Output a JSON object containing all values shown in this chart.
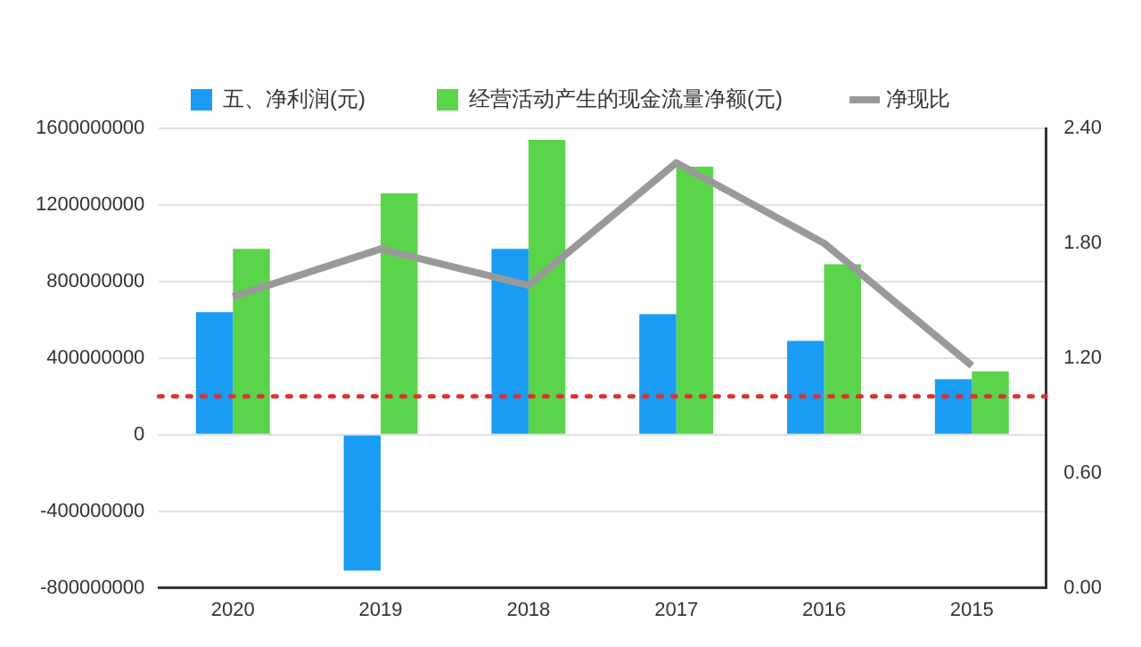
{
  "chart_data": {
    "type": "bar",
    "categories": [
      "2020",
      "2019",
      "2018",
      "2017",
      "2016",
      "2015"
    ],
    "series": [
      {
        "name": "五、净利润(元)",
        "color": "#1a9cf5",
        "values": [
          640000000,
          -710000000,
          970000000,
          630000000,
          490000000,
          290000000
        ]
      },
      {
        "name": "经营活动产生的现金流量净额(元)",
        "color": "#5ad44b",
        "values": [
          970000000,
          1260000000,
          1540000000,
          1400000000,
          890000000,
          330000000
        ]
      },
      {
        "name": "净现比",
        "type": "line",
        "axis": "y2",
        "color": "#999999",
        "values": [
          1.52,
          1.77,
          1.58,
          2.22,
          1.8,
          1.16
        ]
      }
    ],
    "ylim": [
      -800000000,
      1600000000
    ],
    "yticks": [
      -800000000,
      -400000000,
      0,
      400000000,
      800000000,
      1200000000,
      1600000000
    ],
    "y2lim": [
      0,
      2.4
    ],
    "y2ticks": [
      {
        "value": 0,
        "label": "0.00"
      },
      {
        "value": 0.6,
        "label": "0.60"
      },
      {
        "value": 1.2,
        "label": "1.20"
      },
      {
        "value": 1.8,
        "label": "1.80"
      },
      {
        "value": 2.4,
        "label": "2.40"
      }
    ],
    "ref_lines": [
      {
        "axis": "y2",
        "value": 1.0,
        "color": "#e03030",
        "line_style": "dotted"
      }
    ],
    "grid": "y",
    "legend": "top",
    "marker": "none",
    "line_style": "solid"
  }
}
